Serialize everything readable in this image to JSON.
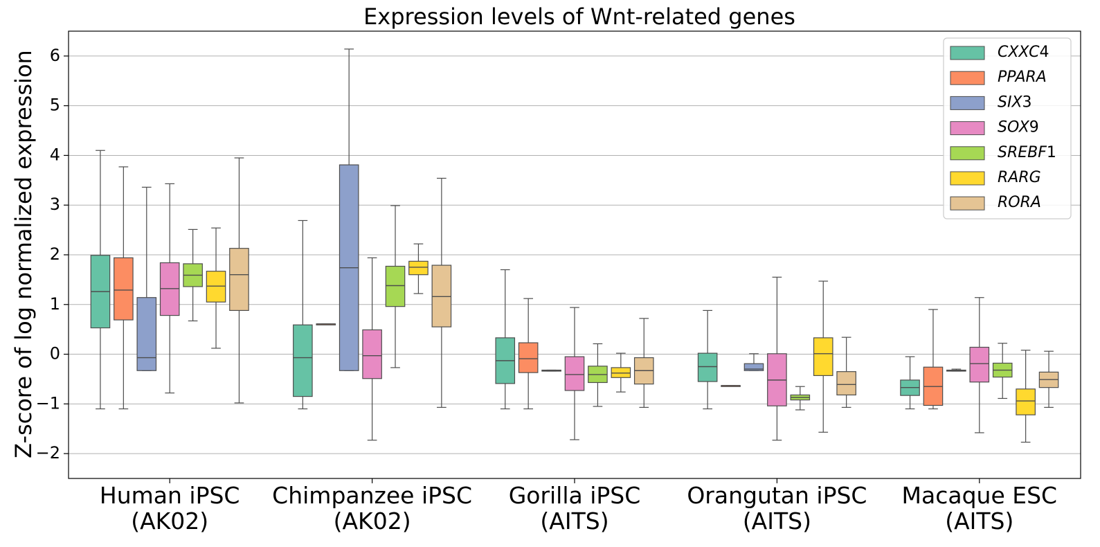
{
  "chart_data": {
    "type": "box",
    "title": "Expression levels of Wnt-related genes",
    "xlabel": "",
    "ylabel": "Z-score of log normalized expression",
    "ylim": [
      -2.5,
      6.5
    ],
    "yticks": [
      -2,
      -1,
      0,
      1,
      2,
      3,
      4,
      5,
      6
    ],
    "ytick_labels": [
      "−2",
      "−1",
      "0",
      "1",
      "2",
      "3",
      "4",
      "5",
      "6"
    ],
    "grid": "horizontal",
    "legend_position": "top-right",
    "categories": [
      {
        "line1": "Human iPSC",
        "line2": "(AK02)"
      },
      {
        "line1": "Chimpanzee iPSC",
        "line2": "(AK02)"
      },
      {
        "line1": "Gorilla iPSC",
        "line2": "(AITS)"
      },
      {
        "line1": "Orangutan iPSC",
        "line2": "(AITS)"
      },
      {
        "line1": "Macaque ESC",
        "line2": "(AITS)"
      }
    ],
    "series": [
      {
        "name": "CXXC4",
        "label_italic": "CXXC",
        "label_suffix": "4",
        "color": "#66c2a5",
        "boxes": [
          {
            "whislo": -1.1,
            "q1": 0.53,
            "med": 1.26,
            "q3": 1.99,
            "whishi": 4.1
          },
          {
            "whislo": -1.1,
            "q1": -0.85,
            "med": -0.07,
            "q3": 0.59,
            "whishi": 2.69
          },
          {
            "whislo": -1.1,
            "q1": -0.59,
            "med": -0.13,
            "q3": 0.33,
            "whishi": 1.7
          },
          {
            "whislo": -1.1,
            "q1": -0.55,
            "med": -0.25,
            "q3": 0.02,
            "whishi": 0.88
          },
          {
            "whislo": -1.1,
            "q1": -0.83,
            "med": -0.67,
            "q3": -0.52,
            "whishi": -0.05
          }
        ]
      },
      {
        "name": "PPARA",
        "label_italic": "PPARA",
        "label_suffix": "",
        "color": "#fc8d62",
        "boxes": [
          {
            "whislo": -1.1,
            "q1": 0.69,
            "med": 1.29,
            "q3": 1.94,
            "whishi": 3.77
          },
          {
            "whislo": 0.61,
            "q1": 0.61,
            "med": 0.61,
            "q3": 0.61,
            "whishi": 0.61
          },
          {
            "whislo": -1.1,
            "q1": -0.37,
            "med": -0.09,
            "q3": 0.23,
            "whishi": 1.12
          },
          {
            "whislo": -0.63,
            "q1": -0.63,
            "med": -0.63,
            "q3": -0.63,
            "whishi": -0.63
          },
          {
            "whislo": -1.1,
            "q1": -1.03,
            "med": -0.65,
            "q3": -0.26,
            "whishi": 0.9
          }
        ]
      },
      {
        "name": "SIX3",
        "label_italic": "SIX",
        "label_suffix": "3",
        "color": "#8da0cb",
        "boxes": [
          {
            "whislo": -0.33,
            "q1": -0.33,
            "med": -0.07,
            "q3": 1.14,
            "whishi": 3.36
          },
          {
            "whislo": -0.33,
            "q1": -0.33,
            "med": 1.74,
            "q3": 3.81,
            "whishi": 6.14
          },
          {
            "whislo": -0.34,
            "q1": -0.34,
            "med": -0.33,
            "q3": -0.32,
            "whishi": -0.32
          },
          {
            "whislo": -0.33,
            "q1": -0.33,
            "med": -0.3,
            "q3": -0.19,
            "whishi": 0.01
          },
          {
            "whislo": -0.34,
            "q1": -0.34,
            "med": -0.33,
            "q3": -0.32,
            "whishi": -0.3
          }
        ]
      },
      {
        "name": "SOX9",
        "label_italic": "SOX",
        "label_suffix": "9",
        "color": "#e78ac3",
        "boxes": [
          {
            "whislo": -0.78,
            "q1": 0.78,
            "med": 1.32,
            "q3": 1.84,
            "whishi": 3.43
          },
          {
            "whislo": -1.73,
            "q1": -0.49,
            "med": -0.03,
            "q3": 0.49,
            "whishi": 1.94
          },
          {
            "whislo": -1.72,
            "q1": -0.73,
            "med": -0.41,
            "q3": -0.05,
            "whishi": 0.94
          },
          {
            "whislo": -1.73,
            "q1": -1.04,
            "med": -0.52,
            "q3": 0.01,
            "whishi": 1.55
          },
          {
            "whislo": -1.58,
            "q1": -0.56,
            "med": -0.19,
            "q3": 0.14,
            "whishi": 1.14
          }
        ]
      },
      {
        "name": "SREBF1",
        "label_italic": "SREBF",
        "label_suffix": "1",
        "color": "#a6d854",
        "boxes": [
          {
            "whislo": 0.67,
            "q1": 1.36,
            "med": 1.59,
            "q3": 1.82,
            "whishi": 2.51
          },
          {
            "whislo": -0.27,
            "q1": 0.96,
            "med": 1.38,
            "q3": 1.77,
            "whishi": 2.99
          },
          {
            "whislo": -1.05,
            "q1": -0.57,
            "med": -0.41,
            "q3": -0.24,
            "whishi": 0.21
          },
          {
            "whislo": -1.12,
            "q1": -0.92,
            "med": -0.87,
            "q3": -0.82,
            "whishi": -0.65
          },
          {
            "whislo": -0.89,
            "q1": -0.46,
            "med": -0.32,
            "q3": -0.18,
            "whishi": 0.22
          }
        ]
      },
      {
        "name": "RARG",
        "label_italic": "RARG",
        "label_suffix": "",
        "color": "#ffd92f",
        "boxes": [
          {
            "whislo": 0.12,
            "q1": 1.05,
            "med": 1.37,
            "q3": 1.67,
            "whishi": 2.54
          },
          {
            "whislo": 1.22,
            "q1": 1.6,
            "med": 1.75,
            "q3": 1.87,
            "whishi": 2.22
          },
          {
            "whislo": -0.76,
            "q1": -0.47,
            "med": -0.38,
            "q3": -0.27,
            "whishi": 0.02
          },
          {
            "whislo": -1.57,
            "q1": -0.43,
            "med": 0.01,
            "q3": 0.33,
            "whishi": 1.47
          },
          {
            "whislo": -1.77,
            "q1": -1.22,
            "med": -0.94,
            "q3": -0.7,
            "whishi": 0.08
          }
        ]
      },
      {
        "name": "RORA",
        "label_italic": "RORA",
        "label_suffix": "",
        "color": "#e5c494",
        "boxes": [
          {
            "whislo": -0.98,
            "q1": 0.88,
            "med": 1.6,
            "q3": 2.13,
            "whishi": 3.95
          },
          {
            "whislo": -1.07,
            "q1": 0.55,
            "med": 1.16,
            "q3": 1.79,
            "whishi": 3.54
          },
          {
            "whislo": -1.07,
            "q1": -0.6,
            "med": -0.33,
            "q3": -0.07,
            "whishi": 0.72
          },
          {
            "whislo": -1.07,
            "q1": -0.82,
            "med": -0.61,
            "q3": -0.35,
            "whishi": 0.34
          },
          {
            "whislo": -1.07,
            "q1": -0.67,
            "med": -0.51,
            "q3": -0.36,
            "whishi": 0.06
          }
        ]
      }
    ]
  }
}
